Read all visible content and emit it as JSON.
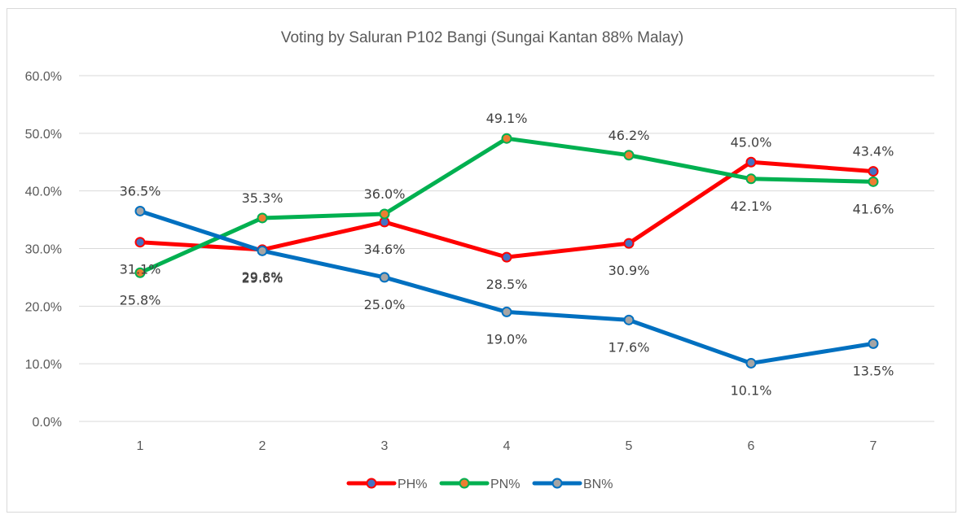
{
  "chart_data": {
    "type": "line",
    "title": "Voting by Saluran P102 Bangi (Sungai Kantan 88% Malay)",
    "xlabel": "",
    "ylabel": "",
    "categories": [
      "1",
      "2",
      "3",
      "4",
      "5",
      "6",
      "7"
    ],
    "ylim": [
      0,
      60
    ],
    "yticks": [
      "0.0%",
      "10.0%",
      "20.0%",
      "30.0%",
      "40.0%",
      "50.0%",
      "60.0%"
    ],
    "grid": true,
    "legend_position": "bottom",
    "series": [
      {
        "name": "PH%",
        "color": "#ff0000",
        "marker_color": "#4472c4",
        "values": [
          31.1,
          29.8,
          34.6,
          28.5,
          30.9,
          45.0,
          43.4
        ],
        "labels": [
          "31.1%",
          "29.8%",
          "34.6%",
          "28.5%",
          "30.9%",
          "45.0%",
          "43.4%"
        ]
      },
      {
        "name": "PN%",
        "color": "#00b050",
        "marker_color": "#ed7d31",
        "values": [
          25.8,
          35.3,
          36.0,
          49.1,
          46.2,
          42.1,
          41.6
        ],
        "labels": [
          "25.8%",
          "35.3%",
          "36.0%",
          "49.1%",
          "46.2%",
          "42.1%",
          "41.6%"
        ]
      },
      {
        "name": "BN%",
        "color": "#0070c0",
        "marker_color": "#a5a5a5",
        "values": [
          36.5,
          29.6,
          25.0,
          19.0,
          17.6,
          10.1,
          13.5
        ],
        "labels": [
          "36.5%",
          "29.6%",
          "25.0%",
          "19.0%",
          "17.6%",
          "10.1%",
          "13.5%"
        ]
      }
    ]
  }
}
